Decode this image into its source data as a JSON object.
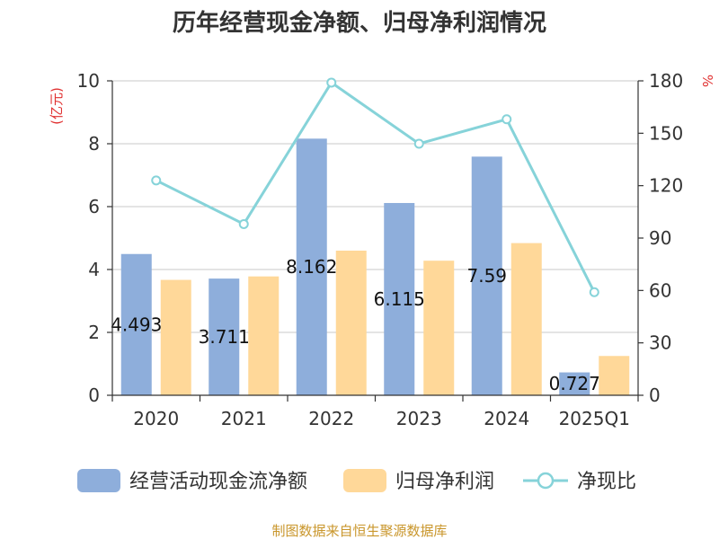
{
  "chart_data": {
    "type": "bar",
    "title": "历年经营现金净额、归母净利润情况",
    "left_unit": "(亿元)",
    "right_unit": "%",
    "categories": [
      "2020",
      "2021",
      "2022",
      "2023",
      "2024",
      "2025Q1"
    ],
    "ylim_left": [
      0,
      10
    ],
    "yticks_left": [
      0,
      2,
      4,
      6,
      8,
      10
    ],
    "ylim_right": [
      0,
      180
    ],
    "yticks_right": [
      0,
      30,
      60,
      90,
      120,
      150,
      180
    ],
    "grid": true,
    "legend_position": "bottom",
    "series": [
      {
        "name": "经营活动现金流净额",
        "kind": "bar",
        "axis": "left",
        "color": "#8eaedb",
        "values": [
          4.493,
          3.711,
          8.162,
          6.115,
          7.59,
          0.727
        ],
        "labels": [
          "4.493",
          "3.711",
          "8.162",
          "6.115",
          "7.59",
          "0.727"
        ]
      },
      {
        "name": "归母净利润",
        "kind": "bar",
        "axis": "left",
        "color": "#ffd899",
        "values": [
          3.67,
          3.78,
          4.6,
          4.28,
          4.84,
          1.25
        ]
      },
      {
        "name": "净现比",
        "kind": "line",
        "axis": "right",
        "color": "#86d3d9",
        "values": [
          123,
          98,
          179,
          144,
          158,
          59
        ]
      }
    ]
  },
  "footer": {
    "source": "制图数据来自恒生聚源数据库"
  }
}
